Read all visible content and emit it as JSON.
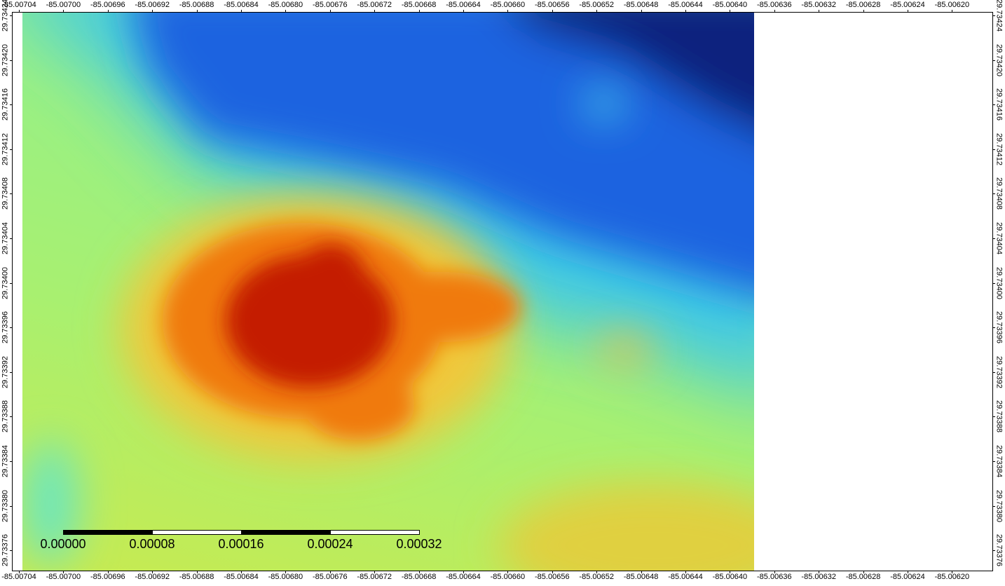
{
  "map": {
    "x_ticks": [
      "-85.00704",
      "-85.00700",
      "-85.00696",
      "-85.00692",
      "-85.00688",
      "-85.00684",
      "-85.00680",
      "-85.00676",
      "-85.00672",
      "-85.00668",
      "-85.00664",
      "-85.00660",
      "-85.00656",
      "-85.00652",
      "-85.00648",
      "-85.00644",
      "-85.00640",
      "-85.00636",
      "-85.00632",
      "-85.00628",
      "-85.00624",
      "-85.00620"
    ],
    "y_ticks": [
      "29.73424",
      "29.73420",
      "29.73416",
      "29.73412",
      "29.73408",
      "29.73404",
      "29.73400",
      "29.73396",
      "29.73392",
      "29.73388",
      "29.73384",
      "29.73380",
      "29.73376"
    ],
    "scale_bar": {
      "labels": [
        "0.00000",
        "0.00008",
        "0.00016",
        "0.00024",
        "0.00032"
      ]
    },
    "colormap": [
      "#0a1e7a",
      "#1560e0",
      "#3fd0e6",
      "#a2f06a",
      "#f0d23a",
      "#f07a10",
      "#c41a00"
    ]
  }
}
